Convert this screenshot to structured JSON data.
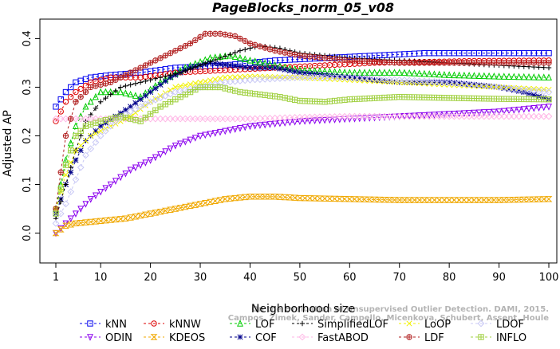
{
  "chart_data": {
    "type": "line",
    "title": "PageBlocks_norm_05_v08",
    "xlabel": "Neighborhood size",
    "ylabel": "Adjusted AP",
    "xlim": [
      1,
      100
    ],
    "ylim": [
      -0.045,
      0.44
    ],
    "x_ticks": [
      1,
      10,
      20,
      30,
      40,
      50,
      60,
      70,
      80,
      90,
      100
    ],
    "y_ticks": [
      0.0,
      0.1,
      0.2,
      0.3,
      0.4
    ],
    "y_tick_labels": [
      "0.0",
      "0.1",
      "0.2",
      "0.3",
      "0.4"
    ],
    "grid": false,
    "legend_position": "bottom",
    "watermark": [
      "On the Evaluation of Unsupervised Outlier Detection. DAMI, 2015.",
      "Campos, Zimek, Sander, Campello, Micenkova, Schubert, Assent, Houle"
    ],
    "series": [
      {
        "name": "kNN",
        "color": "#0000ee",
        "marker": "square",
        "dashed": true,
        "points": [
          [
            1,
            0.26
          ],
          [
            3,
            0.29
          ],
          [
            5,
            0.31
          ],
          [
            8,
            0.32
          ],
          [
            12,
            0.325
          ],
          [
            18,
            0.33
          ],
          [
            25,
            0.34
          ],
          [
            35,
            0.345
          ],
          [
            45,
            0.355
          ],
          [
            55,
            0.36
          ],
          [
            65,
            0.365
          ],
          [
            75,
            0.37
          ],
          [
            85,
            0.37
          ],
          [
            100,
            0.37
          ]
        ]
      },
      {
        "name": "ODIN",
        "color": "#8b00ee",
        "marker": "triangle-down",
        "dashed": true,
        "points": [
          [
            1,
            0.0
          ],
          [
            4,
            0.03
          ],
          [
            8,
            0.07
          ],
          [
            12,
            0.1
          ],
          [
            16,
            0.13
          ],
          [
            20,
            0.15
          ],
          [
            25,
            0.18
          ],
          [
            30,
            0.2
          ],
          [
            35,
            0.21
          ],
          [
            40,
            0.22
          ],
          [
            50,
            0.23
          ],
          [
            60,
            0.235
          ],
          [
            70,
            0.24
          ],
          [
            80,
            0.245
          ],
          [
            90,
            0.25
          ],
          [
            100,
            0.26
          ]
        ]
      },
      {
        "name": "kNNW",
        "color": "#dd0000",
        "marker": "circle",
        "dashed": true,
        "points": [
          [
            1,
            0.23
          ],
          [
            3,
            0.27
          ],
          [
            5,
            0.29
          ],
          [
            8,
            0.31
          ],
          [
            12,
            0.32
          ],
          [
            18,
            0.32
          ],
          [
            25,
            0.33
          ],
          [
            35,
            0.335
          ],
          [
            45,
            0.34
          ],
          [
            55,
            0.345
          ],
          [
            65,
            0.35
          ],
          [
            75,
            0.352
          ],
          [
            85,
            0.354
          ],
          [
            100,
            0.355
          ]
        ]
      },
      {
        "name": "KDEOS",
        "color": "#f0a800",
        "marker": "bowtie",
        "dashed": true,
        "points": [
          [
            1,
            0.0
          ],
          [
            3,
            0.015
          ],
          [
            5,
            0.02
          ],
          [
            10,
            0.025
          ],
          [
            15,
            0.03
          ],
          [
            20,
            0.04
          ],
          [
            25,
            0.05
          ],
          [
            30,
            0.06
          ],
          [
            35,
            0.07
          ],
          [
            40,
            0.075
          ],
          [
            45,
            0.075
          ],
          [
            50,
            0.072
          ],
          [
            60,
            0.07
          ],
          [
            70,
            0.068
          ],
          [
            80,
            0.068
          ],
          [
            90,
            0.068
          ],
          [
            100,
            0.07
          ]
        ]
      },
      {
        "name": "LOF",
        "color": "#00cc00",
        "marker": "triangle",
        "dashed": true,
        "points": [
          [
            1,
            0.05
          ],
          [
            3,
            0.15
          ],
          [
            5,
            0.22
          ],
          [
            7,
            0.26
          ],
          [
            10,
            0.29
          ],
          [
            14,
            0.29
          ],
          [
            18,
            0.28
          ],
          [
            22,
            0.31
          ],
          [
            27,
            0.34
          ],
          [
            32,
            0.36
          ],
          [
            36,
            0.365
          ],
          [
            40,
            0.355
          ],
          [
            45,
            0.345
          ],
          [
            50,
            0.335
          ],
          [
            60,
            0.33
          ],
          [
            70,
            0.33
          ],
          [
            80,
            0.325
          ],
          [
            90,
            0.322
          ],
          [
            100,
            0.32
          ]
        ]
      },
      {
        "name": "COF",
        "color": "#00008b",
        "marker": "asterisk",
        "dashed": true,
        "points": [
          [
            1,
            0.04
          ],
          [
            3,
            0.1
          ],
          [
            5,
            0.15
          ],
          [
            7,
            0.19
          ],
          [
            10,
            0.22
          ],
          [
            13,
            0.24
          ],
          [
            16,
            0.26
          ],
          [
            20,
            0.29
          ],
          [
            24,
            0.32
          ],
          [
            28,
            0.34
          ],
          [
            32,
            0.35
          ],
          [
            36,
            0.345
          ],
          [
            40,
            0.34
          ],
          [
            45,
            0.34
          ],
          [
            50,
            0.33
          ],
          [
            60,
            0.32
          ],
          [
            70,
            0.31
          ],
          [
            80,
            0.31
          ],
          [
            90,
            0.3
          ],
          [
            95,
            0.29
          ],
          [
            100,
            0.275
          ]
        ]
      },
      {
        "name": "SimplifiedLOF",
        "color": "#000000",
        "marker": "plus",
        "dashed": true,
        "points": [
          [
            1,
            0.03
          ],
          [
            3,
            0.1
          ],
          [
            5,
            0.17
          ],
          [
            7,
            0.23
          ],
          [
            10,
            0.27
          ],
          [
            14,
            0.3
          ],
          [
            18,
            0.31
          ],
          [
            22,
            0.32
          ],
          [
            26,
            0.33
          ],
          [
            30,
            0.345
          ],
          [
            34,
            0.36
          ],
          [
            38,
            0.375
          ],
          [
            42,
            0.385
          ],
          [
            46,
            0.38
          ],
          [
            50,
            0.37
          ],
          [
            55,
            0.365
          ],
          [
            60,
            0.36
          ],
          [
            70,
            0.355
          ],
          [
            80,
            0.35
          ],
          [
            90,
            0.345
          ],
          [
            100,
            0.34
          ]
        ]
      },
      {
        "name": "FastABOD",
        "color": "#ffb6e6",
        "marker": "diamond",
        "dashed": true,
        "points": [
          [
            1,
            0.235
          ],
          [
            10,
            0.235
          ],
          [
            20,
            0.235
          ],
          [
            30,
            0.235
          ],
          [
            40,
            0.235
          ],
          [
            50,
            0.238
          ],
          [
            60,
            0.24
          ],
          [
            70,
            0.24
          ],
          [
            80,
            0.24
          ],
          [
            90,
            0.24
          ],
          [
            100,
            0.24
          ]
        ]
      },
      {
        "name": "LoOP",
        "color": "#f0f000",
        "marker": "cross",
        "dashed": true,
        "points": [
          [
            1,
            0.05
          ],
          [
            3,
            0.12
          ],
          [
            5,
            0.17
          ],
          [
            8,
            0.2
          ],
          [
            12,
            0.22
          ],
          [
            16,
            0.24
          ],
          [
            20,
            0.27
          ],
          [
            25,
            0.3
          ],
          [
            30,
            0.31
          ],
          [
            35,
            0.32
          ],
          [
            40,
            0.322
          ],
          [
            50,
            0.32
          ],
          [
            60,
            0.315
          ],
          [
            70,
            0.31
          ],
          [
            80,
            0.305
          ],
          [
            90,
            0.3
          ],
          [
            100,
            0.295
          ]
        ]
      },
      {
        "name": "LDF",
        "color": "#b22222",
        "marker": "circle-plus",
        "dashed": true,
        "points": [
          [
            1,
            0.05
          ],
          [
            3,
            0.2
          ],
          [
            5,
            0.27
          ],
          [
            8,
            0.3
          ],
          [
            12,
            0.31
          ],
          [
            16,
            0.33
          ],
          [
            20,
            0.35
          ],
          [
            24,
            0.37
          ],
          [
            28,
            0.39
          ],
          [
            31,
            0.41
          ],
          [
            34,
            0.41
          ],
          [
            37,
            0.405
          ],
          [
            40,
            0.39
          ],
          [
            45,
            0.375
          ],
          [
            50,
            0.365
          ],
          [
            60,
            0.355
          ],
          [
            70,
            0.35
          ],
          [
            80,
            0.35
          ],
          [
            90,
            0.35
          ],
          [
            100,
            0.35
          ]
        ]
      },
      {
        "name": "LDOF",
        "color": "#c8c8f5",
        "marker": "diamond",
        "dashed": true,
        "points": [
          [
            1,
            0.02
          ],
          [
            3,
            0.06
          ],
          [
            5,
            0.11
          ],
          [
            7,
            0.16
          ],
          [
            10,
            0.2
          ],
          [
            13,
            0.23
          ],
          [
            16,
            0.25
          ],
          [
            20,
            0.27
          ],
          [
            25,
            0.29
          ],
          [
            30,
            0.3
          ],
          [
            35,
            0.31
          ],
          [
            40,
            0.315
          ],
          [
            50,
            0.32
          ],
          [
            60,
            0.32
          ],
          [
            70,
            0.315
          ],
          [
            80,
            0.31
          ],
          [
            90,
            0.3
          ],
          [
            100,
            0.29
          ]
        ]
      },
      {
        "name": "INFLO",
        "color": "#a0d040",
        "marker": "star",
        "dashed": true,
        "points": [
          [
            1,
            0.04
          ],
          [
            3,
            0.14
          ],
          [
            5,
            0.2
          ],
          [
            7,
            0.22
          ],
          [
            10,
            0.23
          ],
          [
            14,
            0.24
          ],
          [
            18,
            0.23
          ],
          [
            22,
            0.26
          ],
          [
            26,
            0.28
          ],
          [
            30,
            0.3
          ],
          [
            34,
            0.3
          ],
          [
            38,
            0.29
          ],
          [
            42,
            0.285
          ],
          [
            46,
            0.28
          ],
          [
            50,
            0.272
          ],
          [
            55,
            0.27
          ],
          [
            60,
            0.275
          ],
          [
            70,
            0.28
          ],
          [
            80,
            0.278
          ],
          [
            90,
            0.276
          ],
          [
            100,
            0.275
          ]
        ]
      }
    ]
  }
}
